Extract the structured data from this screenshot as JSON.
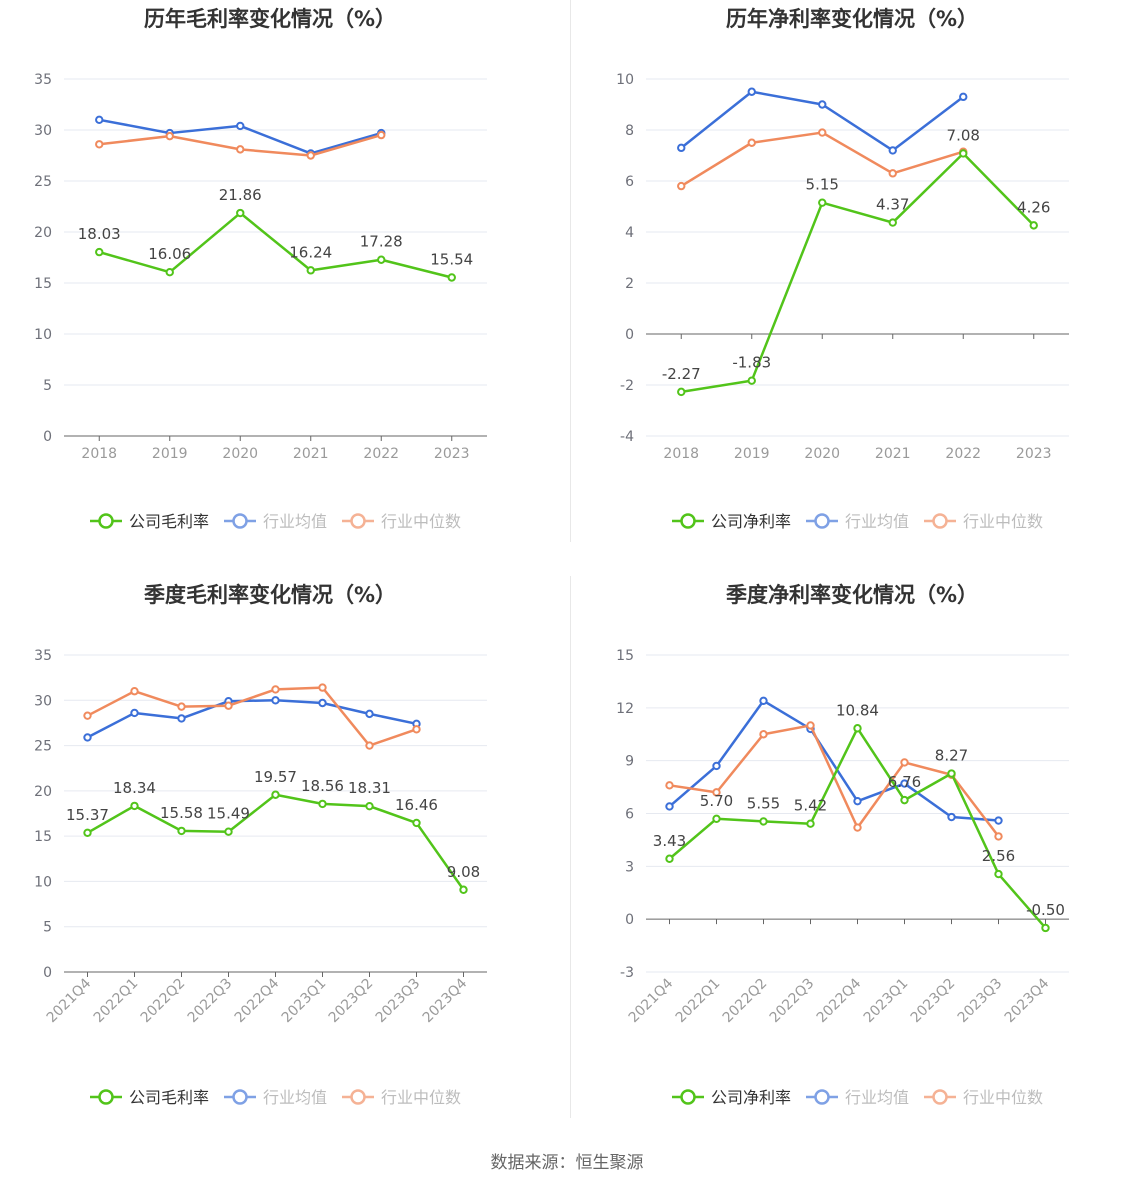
{
  "source": "数据来源：恒生聚源",
  "colors": {
    "company": "#52c41a",
    "average": "#3b6fd8",
    "median": "#f08a5d"
  },
  "chart_data": [
    {
      "type": "line",
      "title": "历年毛利率变化情况（%）",
      "categories": [
        "2018",
        "2019",
        "2020",
        "2021",
        "2022",
        "2023"
      ],
      "ylim": [
        0,
        35
      ],
      "yticks": [
        0,
        5,
        10,
        15,
        20,
        25,
        30,
        35
      ],
      "grid": true,
      "legend_position": "bottom",
      "series": [
        {
          "name": "公司毛利率",
          "values": [
            18.03,
            16.06,
            21.86,
            16.24,
            17.28,
            15.54
          ],
          "labels": [
            "18.03",
            "16.06",
            "21.86",
            "16.24",
            "17.28",
            "15.54"
          ]
        },
        {
          "name": "行业均值",
          "values": [
            31.0,
            29.7,
            30.4,
            27.7,
            29.7,
            null
          ]
        },
        {
          "name": "行业中位数",
          "values": [
            28.6,
            29.4,
            28.1,
            27.5,
            29.5,
            null
          ]
        }
      ]
    },
    {
      "type": "line",
      "title": "历年净利率变化情况（%）",
      "categories": [
        "2018",
        "2019",
        "2020",
        "2021",
        "2022",
        "2023"
      ],
      "ylim": [
        -4,
        10
      ],
      "yticks": [
        -4,
        -2,
        0,
        2,
        4,
        6,
        8,
        10
      ],
      "grid": true,
      "legend_position": "bottom",
      "series": [
        {
          "name": "公司净利率",
          "values": [
            -2.27,
            -1.83,
            5.15,
            4.37,
            7.08,
            4.26
          ],
          "labels": [
            "-2.27",
            "-1.83",
            "5.15",
            "4.37",
            "7.08",
            "4.26"
          ]
        },
        {
          "name": "行业均值",
          "values": [
            7.3,
            9.5,
            9.0,
            7.2,
            9.3,
            null
          ]
        },
        {
          "name": "行业中位数",
          "values": [
            5.8,
            7.5,
            7.9,
            6.3,
            7.15,
            null
          ]
        }
      ]
    },
    {
      "type": "line",
      "title": "季度毛利率变化情况（%）",
      "categories": [
        "2021Q4",
        "2022Q1",
        "2022Q2",
        "2022Q3",
        "2022Q4",
        "2023Q1",
        "2023Q2",
        "2023Q3",
        "2023Q4"
      ],
      "ylim": [
        0,
        35
      ],
      "yticks": [
        0,
        5,
        10,
        15,
        20,
        25,
        30,
        35
      ],
      "grid": true,
      "legend_position": "bottom",
      "series": [
        {
          "name": "公司毛利率",
          "values": [
            15.37,
            18.34,
            15.58,
            15.49,
            19.57,
            18.56,
            18.31,
            16.46,
            9.08
          ],
          "labels": [
            "15.37",
            "18.34",
            "15.58",
            "15.49",
            "19.57",
            "18.56",
            "18.31",
            "16.46",
            "9.08"
          ]
        },
        {
          "name": "行业均值",
          "values": [
            25.9,
            28.6,
            28.0,
            29.9,
            30.0,
            29.7,
            28.5,
            27.4,
            null
          ]
        },
        {
          "name": "行业中位数",
          "values": [
            28.3,
            31.0,
            29.3,
            29.4,
            31.2,
            31.4,
            25.0,
            26.8,
            null
          ]
        }
      ]
    },
    {
      "type": "line",
      "title": "季度净利率变化情况（%）",
      "categories": [
        "2021Q4",
        "2022Q1",
        "2022Q2",
        "2022Q3",
        "2022Q4",
        "2023Q1",
        "2023Q2",
        "2023Q3",
        "2023Q4"
      ],
      "ylim": [
        -3,
        15
      ],
      "yticks": [
        -3,
        0,
        3,
        6,
        9,
        12,
        15
      ],
      "grid": true,
      "legend_position": "bottom",
      "series": [
        {
          "name": "公司净利率",
          "values": [
            3.43,
            5.7,
            5.55,
            5.42,
            10.84,
            6.76,
            8.27,
            2.56,
            -0.5
          ],
          "labels": [
            "3.43",
            "5.70",
            "5.55",
            "5.42",
            "10.84",
            "6.76",
            "8.27",
            "2.56",
            "-0.50"
          ]
        },
        {
          "name": "行业均值",
          "values": [
            6.4,
            8.7,
            12.4,
            10.8,
            6.7,
            7.7,
            5.8,
            5.6,
            null
          ]
        },
        {
          "name": "行业中位数",
          "values": [
            7.6,
            7.2,
            10.5,
            11.0,
            5.2,
            8.9,
            8.2,
            4.7,
            null
          ]
        }
      ]
    }
  ]
}
